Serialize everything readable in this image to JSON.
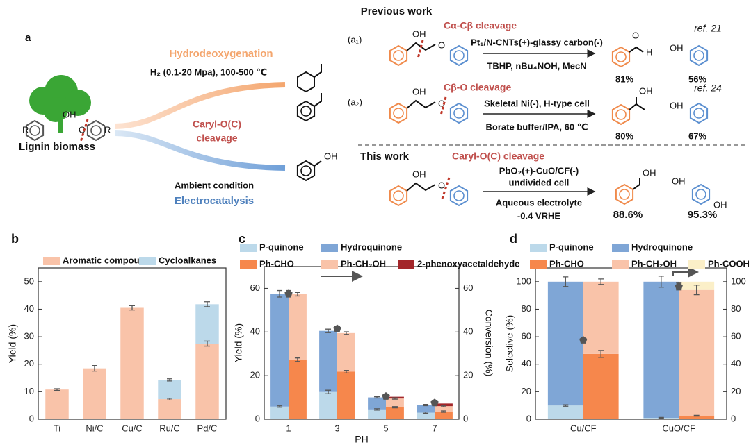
{
  "scheme": {
    "panel": "a",
    "previous": "Previous work",
    "hdo": "Hydrodeoxygenation",
    "hdo_cond": "H₂ (0.1-20 Mpa), 100-500 ℃",
    "caryl1": "Caryl-O(C)",
    "caryl2": "cleavage",
    "ambient": "Ambient condition",
    "electro": "Electrocatalysis",
    "lignin": "Lignin biomass",
    "oh": "OH",
    "o": "O",
    "h": "H",
    "r": "R",
    "a1": {
      "tag": "(a₁)",
      "title": "Cα-Cβ cleavage",
      "cond1": "Pt₁/N-CNTs(+)-glassy carbon(-)",
      "cond2": "TBHP, nBu₄NOH, MecN",
      "ref": "ref. 21",
      "y1": "81%",
      "y2": "56%"
    },
    "a2": {
      "tag": "(a₂)",
      "title": "Cβ-O cleavage",
      "cond1": "Skeletal Ni(-), H-type cell",
      "cond2": "Borate buffer/IPA, 60 ℃",
      "ref": "ref. 24",
      "y1": "80%",
      "y2": "67%"
    },
    "this": {
      "tag": "This work",
      "title": "Caryl-O(C) cleavage",
      "cond1": "PbO₂(+)-CuO/CF(-)",
      "cond2": "undivided cell",
      "cond3": "Aqueous electrolyte",
      "cond4": "-0.4 VRHE",
      "y1": "88.6%",
      "y2": "95.3%"
    }
  },
  "chart_data": [
    {
      "type": "bar",
      "panel": "b",
      "ylabel": "Yield (%)",
      "categories": [
        "Ti",
        "Ni/C",
        "Cu/C",
        "Ru/C",
        "Pd/C"
      ],
      "ylim": [
        0,
        55
      ],
      "yticks": [
        0,
        10,
        20,
        30,
        40,
        50
      ],
      "series": [
        {
          "name": "Aromatic compounds",
          "color": "#f9c3a9",
          "values": [
            10.8,
            18.5,
            40.5,
            7.3,
            27.5
          ],
          "errors": [
            0.3,
            1.0,
            0.8,
            0.3,
            0.9
          ]
        },
        {
          "name": "Cycloalkanes",
          "color": "#bcd9ea",
          "values": [
            0,
            0,
            0,
            7.0,
            14.3
          ],
          "errors": [
            null,
            null,
            null,
            0.4,
            0.9
          ]
        }
      ]
    },
    {
      "type": "bar",
      "panel": "c",
      "ylabel": "Yield (%)",
      "y2label": "Conversion (%)",
      "xlabel": "PH",
      "categories": [
        "1",
        "3",
        "5",
        "7"
      ],
      "ylim": [
        0,
        70
      ],
      "yticks": [
        0,
        20,
        40,
        60
      ],
      "y2lim": [
        0,
        70
      ],
      "y2ticks": [
        0,
        20,
        40,
        60
      ],
      "series": [
        {
          "name": "P-quinone",
          "color": "#bcd9ea",
          "stack": 1,
          "values": [
            5.8,
            12.5,
            4.5,
            3.0
          ],
          "errors": [
            0.3,
            0.8,
            0.3,
            0.3
          ]
        },
        {
          "name": "Hydroquinone",
          "color": "#7fa6d6",
          "stack": 1,
          "values": [
            51.7,
            28.0,
            5.5,
            3.5
          ],
          "errors": [
            1.5,
            0.8,
            0.3,
            0.3
          ]
        },
        {
          "name": "Ph-CHO",
          "color": "#f6874c",
          "stack": 2,
          "values": [
            27.3,
            21.8,
            5.5,
            3.5
          ],
          "errors": [
            0.8,
            0.6,
            0.3,
            0.3
          ]
        },
        {
          "name": "Ph-CH₂OH",
          "color": "#f9c3a9",
          "stack": 2,
          "values": [
            30.0,
            17.7,
            4.0,
            2.5
          ],
          "errors": [
            0.8,
            0.6,
            0.3,
            0.3
          ]
        },
        {
          "name": "2-phenoxyacetaldehyde",
          "color": "#a3262a",
          "stack": 2,
          "values": [
            0,
            0,
            0.8,
            1.2
          ],
          "errors": [
            null,
            null,
            null,
            null
          ]
        }
      ],
      "conversion": {
        "color": "#555555",
        "axis": "y2",
        "values": [
          57.5,
          41.5,
          10.5,
          7.5
        ],
        "errors": [
          1.5,
          1.0,
          0.5,
          0.5
        ]
      }
    },
    {
      "type": "bar",
      "panel": "d",
      "ylabel": "Selective (%)",
      "y2label": "Conversion (%)",
      "categories": [
        "Cu/CF",
        "CuO/CF"
      ],
      "ylim": [
        0,
        110
      ],
      "yticks": [
        0,
        20,
        40,
        60,
        80,
        100
      ],
      "y2lim": [
        0,
        110
      ],
      "y2ticks": [
        0,
        20,
        40,
        60,
        80,
        100
      ],
      "series": [
        {
          "name": "P-quinone",
          "color": "#bcd9ea",
          "stack": 1,
          "values": [
            10,
            1
          ],
          "errors": [
            0.5,
            0.3
          ]
        },
        {
          "name": "Hydroquinone",
          "color": "#7fa6d6",
          "stack": 1,
          "values": [
            90,
            99
          ],
          "errors": [
            3.5,
            4
          ]
        },
        {
          "name": "Ph-CHO",
          "color": "#f6874c",
          "stack": 2,
          "values": [
            47.5,
            2.5
          ],
          "errors": [
            2.5,
            0.3
          ]
        },
        {
          "name": "Ph-CH₂OH",
          "color": "#f9c3a9",
          "stack": 2,
          "values": [
            52.5,
            91.5
          ],
          "errors": [
            2,
            3.5
          ]
        },
        {
          "name": "Ph-COOH",
          "color": "#fbefc8",
          "stack": 2,
          "values": [
            0,
            6
          ],
          "errors": [
            null,
            null
          ]
        }
      ],
      "conversion": {
        "color": "#555555",
        "axis": "y2",
        "values": [
          57.5,
          96.5
        ],
        "errors": [
          1,
          2.5
        ]
      }
    }
  ]
}
